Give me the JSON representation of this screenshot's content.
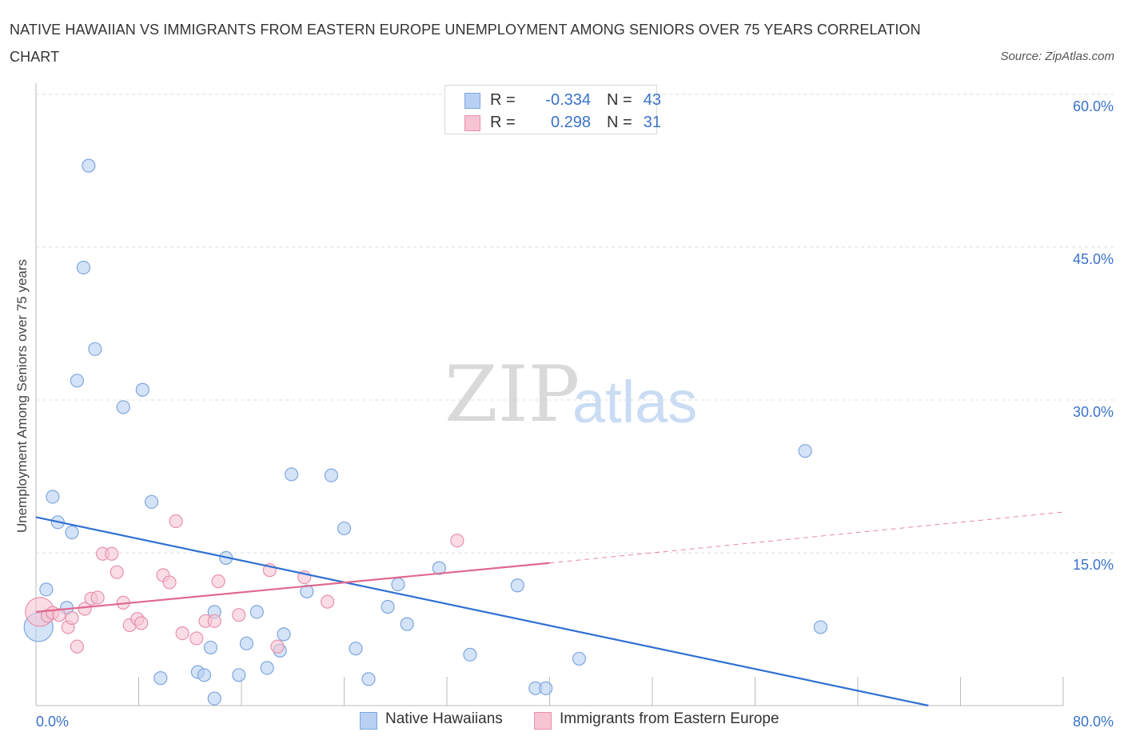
{
  "title": "NATIVE HAWAIIAN VS IMMIGRANTS FROM EASTERN EUROPE UNEMPLOYMENT AMONG SENIORS OVER 75 YEARS CORRELATION CHART",
  "source": "Source: ZipAtlas.com",
  "watermark": {
    "zip": "ZIP",
    "atlas": "atlas"
  },
  "legend_top": [
    {
      "r_label": "R =",
      "r_value": "-0.334",
      "n_label": "N =",
      "n_value": "43"
    },
    {
      "r_label": "R =",
      "r_value": "0.298",
      "n_label": "N =",
      "n_value": "31"
    }
  ],
  "legend_bottom": [
    "Native Hawaiians",
    "Immigrants from Eastern Europe"
  ],
  "colors": {
    "blue_fill": "#b8d0f2",
    "blue_stroke": "#7ea6de",
    "blue_line": "#3070d4",
    "pink_fill": "#f7c4d3",
    "pink_stroke": "#e891ad",
    "pink_line": "#e0698f",
    "grid": "#dcdcdc",
    "tick_label": "#3a72c9"
  },
  "chart_data": {
    "type": "scatter",
    "title": "NATIVE HAWAIIAN VS IMMIGRANTS FROM EASTERN EUROPE UNEMPLOYMENT AMONG SENIORS OVER 75 YEARS CORRELATION CHART",
    "xlabel": "",
    "ylabel": "Unemployment Among Seniors over 75 years",
    "xlim": [
      0,
      80
    ],
    "ylim": [
      0,
      60
    ],
    "x_tick_labels": [
      "0.0%",
      "80.0%"
    ],
    "y_ticks": [
      15,
      30,
      45,
      60
    ],
    "y_tick_labels": [
      "15.0%",
      "30.0%",
      "45.0%",
      "60.0%"
    ],
    "grid": true,
    "legend_position": "top-center",
    "series": [
      {
        "name": "Native Hawaiians",
        "R": -0.334,
        "N": 43,
        "points": [
          [
            0.2,
            7.7,
            "large"
          ],
          [
            4.1,
            53
          ],
          [
            3.7,
            43
          ],
          [
            4.6,
            35
          ],
          [
            3.2,
            31.9
          ],
          [
            8.3,
            31
          ],
          [
            6.8,
            29.3
          ],
          [
            1.3,
            20.5
          ],
          [
            9.0,
            20.0
          ],
          [
            1.7,
            18.0
          ],
          [
            2.8,
            17.0
          ],
          [
            19.9,
            22.7
          ],
          [
            23.0,
            22.6
          ],
          [
            24.0,
            17.4
          ],
          [
            59.9,
            25.0
          ],
          [
            14.8,
            14.5
          ],
          [
            0.8,
            11.4
          ],
          [
            2.4,
            9.6
          ],
          [
            31.4,
            13.5
          ],
          [
            21.1,
            11.2
          ],
          [
            28.2,
            11.9
          ],
          [
            37.5,
            11.8
          ],
          [
            17.2,
            9.2
          ],
          [
            13.9,
            9.2
          ],
          [
            27.4,
            9.7
          ],
          [
            28.9,
            8.0
          ],
          [
            61.1,
            7.7
          ],
          [
            19.3,
            7.0
          ],
          [
            13.6,
            5.7
          ],
          [
            16.4,
            6.1
          ],
          [
            19.0,
            5.4
          ],
          [
            24.9,
            5.6
          ],
          [
            33.8,
            5.0
          ],
          [
            42.3,
            4.6
          ],
          [
            12.6,
            3.3
          ],
          [
            13.1,
            3.0
          ],
          [
            18.0,
            3.7
          ],
          [
            15.8,
            3.0
          ],
          [
            9.7,
            2.7
          ],
          [
            25.9,
            2.6
          ],
          [
            38.9,
            1.7
          ],
          [
            39.7,
            1.7
          ],
          [
            13.9,
            0.7
          ]
        ]
      },
      {
        "name": "Immigrants from Eastern Europe",
        "R": 0.298,
        "N": 31,
        "points": [
          [
            0.3,
            9.2,
            "large"
          ],
          [
            0.9,
            8.8
          ],
          [
            1.3,
            9.1
          ],
          [
            1.8,
            8.9
          ],
          [
            2.5,
            7.7
          ],
          [
            2.8,
            8.6
          ],
          [
            3.2,
            5.8
          ],
          [
            3.8,
            9.5
          ],
          [
            4.3,
            10.5
          ],
          [
            4.8,
            10.6
          ],
          [
            5.2,
            14.9
          ],
          [
            5.9,
            14.9
          ],
          [
            6.3,
            13.1
          ],
          [
            6.8,
            10.1
          ],
          [
            7.3,
            7.9
          ],
          [
            7.9,
            8.5
          ],
          [
            8.2,
            8.1
          ],
          [
            9.9,
            12.8
          ],
          [
            10.4,
            12.1
          ],
          [
            10.9,
            18.1
          ],
          [
            11.4,
            7.1
          ],
          [
            12.5,
            6.6
          ],
          [
            13.2,
            8.3
          ],
          [
            13.9,
            8.3
          ],
          [
            14.2,
            12.2
          ],
          [
            15.8,
            8.9
          ],
          [
            18.2,
            13.3
          ],
          [
            18.8,
            5.8
          ],
          [
            20.9,
            12.6
          ],
          [
            22.7,
            10.2
          ],
          [
            32.8,
            16.2
          ]
        ]
      }
    ],
    "trend_lines": [
      {
        "series": "Native Hawaiians",
        "x": [
          0,
          69.5
        ],
        "y": [
          18.5,
          0
        ],
        "style": "solid"
      },
      {
        "series": "Immigrants from Eastern Europe",
        "x": [
          0,
          40
        ],
        "y": [
          9.2,
          14.0
        ],
        "style": "solid"
      },
      {
        "series": "Immigrants from Eastern Europe",
        "x": [
          40,
          80
        ],
        "y": [
          14.0,
          19.0
        ],
        "style": "dashed"
      }
    ]
  }
}
